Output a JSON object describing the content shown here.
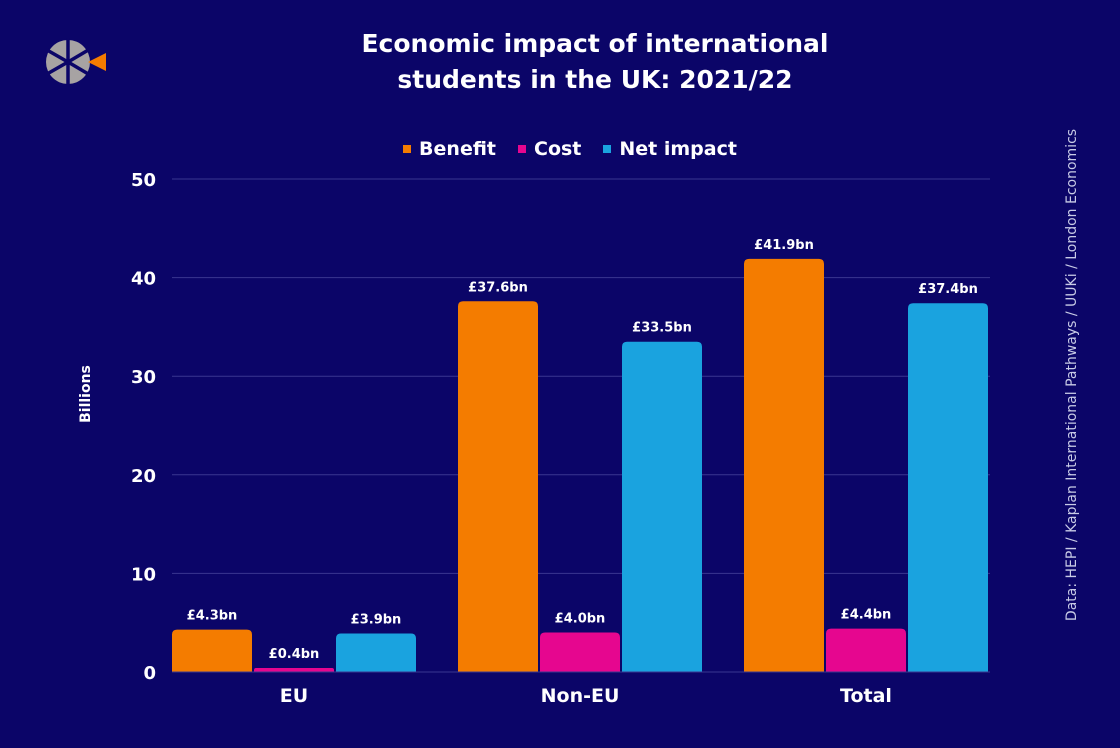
{
  "title_lines": [
    "Economic impact of international",
    "students in the UK: 2021/22"
  ],
  "source_note": "Data: HEPI / Kaplan International Pathways / UUKi / London Economics",
  "colors": {
    "background": "#0b0568",
    "grid": "#3a3690",
    "logo_gray": "#a7a3a3",
    "logo_orange": "#f47c00"
  },
  "chart_data": {
    "type": "bar",
    "categories": [
      "EU",
      "Non-EU",
      "Total"
    ],
    "series": [
      {
        "name": "Benefit",
        "color": "#f47c00",
        "values": [
          4.3,
          37.6,
          41.9
        ],
        "labels": [
          "£4.3bn",
          "£37.6bn",
          "£41.9bn"
        ]
      },
      {
        "name": "Cost",
        "color": "#e6068f",
        "values": [
          0.4,
          4.0,
          4.4
        ],
        "labels": [
          "£0.4bn",
          "£4.0bn",
          "£4.4bn"
        ]
      },
      {
        "name": "Net impact",
        "color": "#1aa3df",
        "values": [
          3.9,
          33.5,
          37.4
        ],
        "labels": [
          "£3.9bn",
          "£33.5bn",
          "£37.4bn"
        ]
      }
    ],
    "ylabel": "Billions",
    "ylim": [
      0,
      50
    ],
    "yticks": [
      0,
      10,
      20,
      30,
      40,
      50
    ],
    "grid": true,
    "legend_position": "top-center"
  }
}
